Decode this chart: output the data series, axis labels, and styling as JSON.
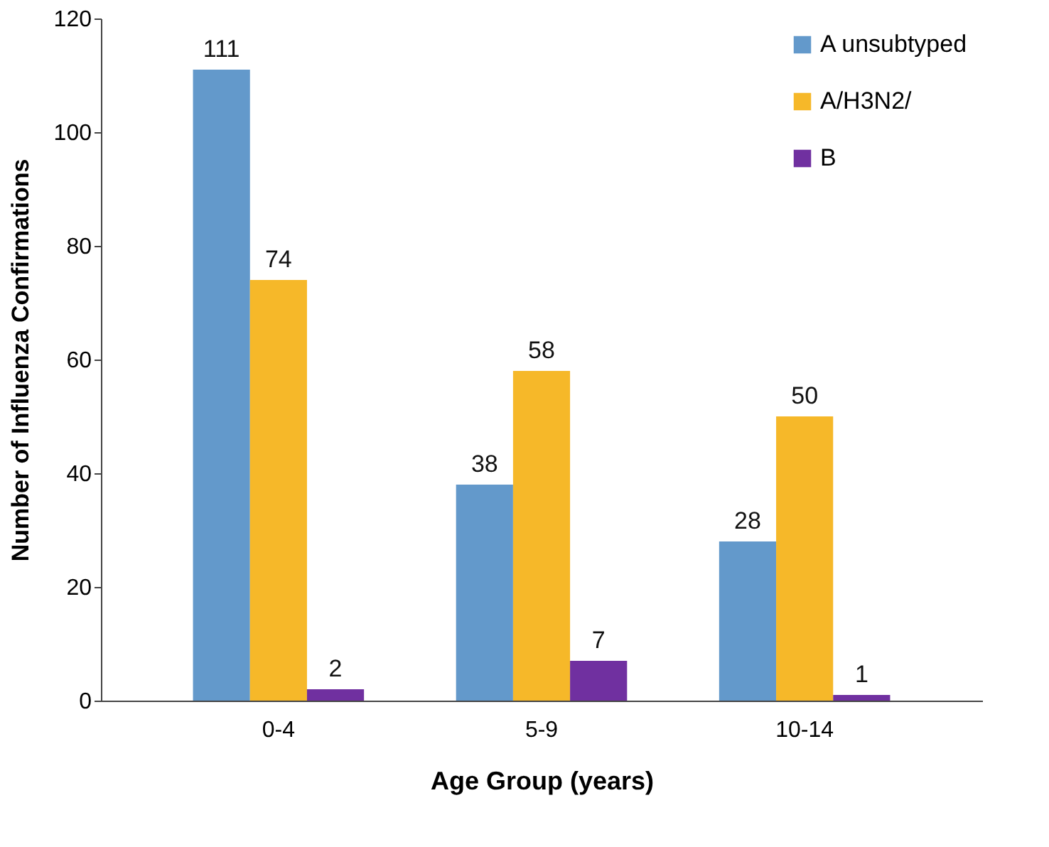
{
  "chart_data": {
    "type": "bar",
    "xlabel": "Age Group (years)",
    "ylabel": "Number of Influenza Confirmations",
    "categories": [
      "0-4",
      "5-9",
      "10-14"
    ],
    "series": [
      {
        "name": "A unsubtyped",
        "color": "#6399cb",
        "values": [
          111,
          38,
          28
        ]
      },
      {
        "name": "A/H3N2/",
        "color": "#f6b829",
        "values": [
          74,
          58,
          50
        ]
      },
      {
        "name": "B",
        "color": "#7030a0",
        "values": [
          2,
          7,
          1
        ]
      }
    ],
    "ylim": [
      0,
      120
    ],
    "yticks": [
      0,
      20,
      40,
      60,
      80,
      100,
      120
    ],
    "data_labels": true,
    "grid": false,
    "legend": "top right"
  }
}
